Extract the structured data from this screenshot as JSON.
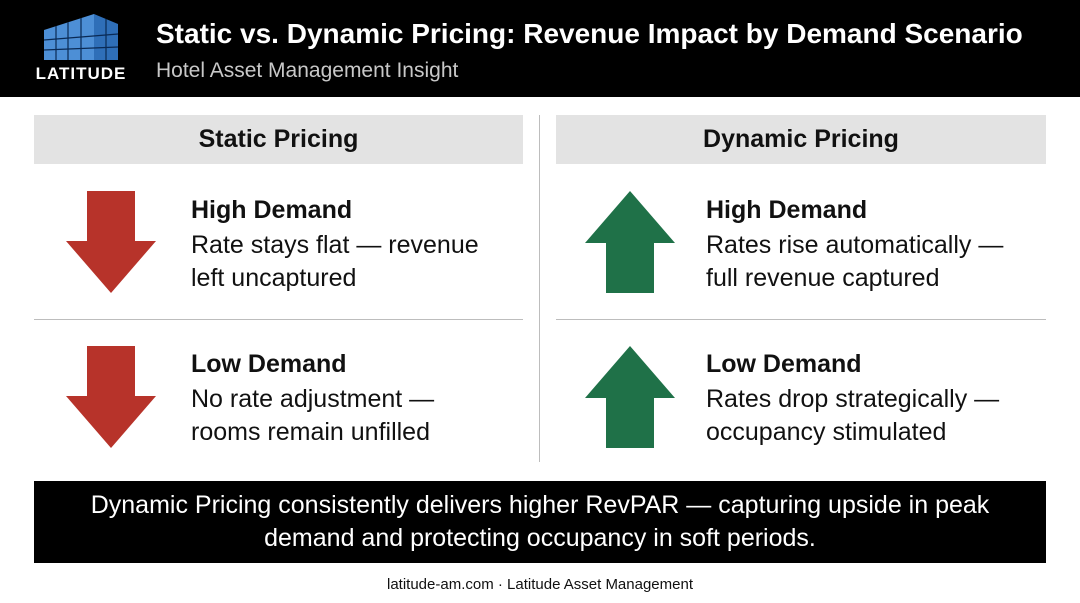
{
  "header": {
    "logo_text": "LATITUDE",
    "title": "Static vs. Dynamic Pricing: Revenue Impact by Demand Scenario",
    "subtitle": "Hotel Asset Management Insight"
  },
  "columns": [
    {
      "heading": "Static Pricing",
      "items": [
        {
          "icon": "arrow-down-icon",
          "color": "#b7332a",
          "title": "High Demand",
          "line1": "Rate stays flat — revenue",
          "line2": "left uncaptured"
        },
        {
          "icon": "arrow-down-icon",
          "color": "#b7332a",
          "title": "Low Demand",
          "line1": "No rate adjustment —",
          "line2": "rooms remain unfilled"
        }
      ]
    },
    {
      "heading": "Dynamic Pricing",
      "items": [
        {
          "icon": "arrow-up-icon",
          "color": "#1f7148",
          "title": "High Demand",
          "line1": "Rates rise automatically —",
          "line2": "full revenue captured"
        },
        {
          "icon": "arrow-up-icon",
          "color": "#1f7148",
          "title": "Low Demand",
          "line1": "Rates drop strategically —",
          "line2": "occupancy stimulated"
        }
      ]
    }
  ],
  "banner": {
    "text": "Dynamic Pricing consistently delivers higher RevPAR — capturing upside in peak demand and protecting occupancy in soft periods."
  },
  "footer": {
    "text": "latitude-am.com · Latitude Asset Management"
  }
}
